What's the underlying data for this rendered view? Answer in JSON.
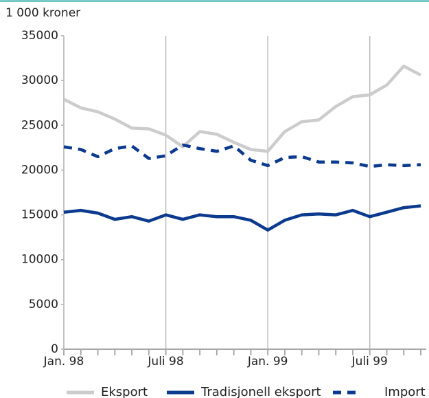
{
  "chart_data": {
    "type": "line",
    "ylabel": "1 000 kroner",
    "categories": [
      "Jan. 98",
      null,
      null,
      null,
      null,
      null,
      "Juli 98",
      null,
      null,
      null,
      null,
      null,
      "Jan. 99",
      null,
      null,
      null,
      null,
      null,
      "Juli 99",
      null,
      null,
      null
    ],
    "series": [
      {
        "name": "Eksport",
        "color": "#cccccc",
        "dash": false,
        "values": [
          27900,
          26950,
          26500,
          25700,
          24700,
          24600,
          23900,
          22600,
          24300,
          24000,
          23100,
          22300,
          22100,
          24300,
          25400,
          25600,
          27100,
          28200,
          28400,
          29500,
          31600,
          30600
        ]
      },
      {
        "name": "Tradisjonell eksport",
        "color": "#0b3a8e",
        "dash": false,
        "values": [
          15300,
          15500,
          15200,
          14500,
          14800,
          14300,
          15000,
          14500,
          15000,
          14800,
          14800,
          14400,
          13300,
          14400,
          15000,
          15100,
          15000,
          15500,
          14800,
          15300,
          15800,
          16000
        ]
      },
      {
        "name": "Import",
        "color": "#0b3a8e",
        "dash": true,
        "values": [
          22600,
          22300,
          21500,
          22400,
          22700,
          21300,
          21600,
          22800,
          22400,
          22100,
          22700,
          21100,
          20500,
          21400,
          21500,
          20900,
          20900,
          20800,
          20400,
          20600,
          20500,
          20600
        ]
      }
    ],
    "ylim": [
      0,
      35000
    ],
    "yticks": [
      0,
      5000,
      10000,
      15000,
      20000,
      25000,
      30000,
      35000
    ],
    "grid": true,
    "legend": "bottom"
  }
}
